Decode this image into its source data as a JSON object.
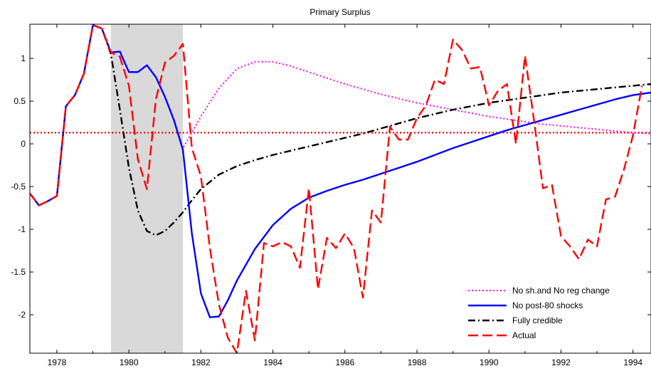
{
  "chart_data": {
    "type": "line",
    "title": "Primary Surplus",
    "xlabel": "",
    "ylabel": "",
    "xlim": [
      1977.25,
      1994.5
    ],
    "ylim": [
      -2.45,
      1.4
    ],
    "x_ticks": [
      1978,
      1980,
      1982,
      1984,
      1986,
      1988,
      1990,
      1992,
      1994
    ],
    "x_tick_labels": [
      "1978",
      "1980",
      "1982",
      "1984",
      "1986",
      "1988",
      "1990",
      "1992",
      "1994"
    ],
    "y_ticks": [
      1,
      0.5,
      0,
      -0.5,
      -1,
      -1.5,
      -2
    ],
    "y_tick_labels": [
      "1",
      "0.5",
      "0",
      "-0.5",
      "-1",
      "-1.5",
      "-2"
    ],
    "grid": false,
    "legend_position": "bottom-right",
    "shaded_region": {
      "x_start": 1979.5,
      "x_end": 1981.5,
      "color": "#d9d9d9"
    },
    "reference_line": {
      "y": 0.13,
      "color": "#ff0000",
      "style": "dotted"
    },
    "series": [
      {
        "name": "No sh.and No reg change",
        "color": "#ff00ff",
        "style": "dotted",
        "points": [
          [
            1977.25,
            -0.58
          ],
          [
            1977.5,
            -0.72
          ],
          [
            1977.75,
            -0.67
          ],
          [
            1978.0,
            -0.61
          ],
          [
            1978.25,
            0.44
          ],
          [
            1978.5,
            0.57
          ],
          [
            1978.75,
            0.82
          ],
          [
            1979.0,
            1.39
          ],
          [
            1979.25,
            1.35
          ],
          [
            1979.5,
            1.07
          ],
          [
            1979.75,
            1.08
          ],
          [
            1980.0,
            0.84
          ],
          [
            1980.25,
            0.84
          ],
          [
            1980.5,
            0.92
          ],
          [
            1980.75,
            0.78
          ],
          [
            1981.0,
            0.55
          ],
          [
            1981.25,
            0.28
          ],
          [
            1981.5,
            -0.05
          ],
          [
            1982.0,
            0.32
          ],
          [
            1982.5,
            0.65
          ],
          [
            1983.0,
            0.88
          ],
          [
            1983.5,
            0.96
          ],
          [
            1984.0,
            0.96
          ],
          [
            1984.5,
            0.91
          ],
          [
            1985.0,
            0.84
          ],
          [
            1985.5,
            0.77
          ],
          [
            1986.0,
            0.7
          ],
          [
            1986.5,
            0.64
          ],
          [
            1987.0,
            0.58
          ],
          [
            1987.5,
            0.53
          ],
          [
            1988.0,
            0.48
          ],
          [
            1988.5,
            0.44
          ],
          [
            1989.0,
            0.4
          ],
          [
            1989.5,
            0.36
          ],
          [
            1990.0,
            0.32
          ],
          [
            1990.5,
            0.29
          ],
          [
            1991.0,
            0.26
          ],
          [
            1991.5,
            0.23
          ],
          [
            1992.0,
            0.21
          ],
          [
            1992.5,
            0.19
          ],
          [
            1993.0,
            0.17
          ],
          [
            1993.5,
            0.15
          ],
          [
            1994.0,
            0.13
          ],
          [
            1994.5,
            0.12
          ]
        ]
      },
      {
        "name": "No post-80 shocks",
        "color": "#0000ff",
        "style": "solid",
        "points": [
          [
            1977.25,
            -0.58
          ],
          [
            1977.5,
            -0.72
          ],
          [
            1977.75,
            -0.67
          ],
          [
            1978.0,
            -0.61
          ],
          [
            1978.25,
            0.44
          ],
          [
            1978.5,
            0.57
          ],
          [
            1978.75,
            0.82
          ],
          [
            1979.0,
            1.39
          ],
          [
            1979.25,
            1.35
          ],
          [
            1979.5,
            1.07
          ],
          [
            1979.75,
            1.08
          ],
          [
            1980.0,
            0.84
          ],
          [
            1980.25,
            0.84
          ],
          [
            1980.5,
            0.92
          ],
          [
            1980.75,
            0.78
          ],
          [
            1981.0,
            0.55
          ],
          [
            1981.25,
            0.28
          ],
          [
            1981.5,
            -0.07
          ],
          [
            1981.75,
            -1.05
          ],
          [
            1982.0,
            -1.75
          ],
          [
            1982.25,
            -2.03
          ],
          [
            1982.5,
            -2.02
          ],
          [
            1982.75,
            -1.83
          ],
          [
            1983.0,
            -1.6
          ],
          [
            1983.5,
            -1.23
          ],
          [
            1984.0,
            -0.95
          ],
          [
            1984.5,
            -0.76
          ],
          [
            1985.0,
            -0.63
          ],
          [
            1985.5,
            -0.55
          ],
          [
            1986.0,
            -0.48
          ],
          [
            1986.5,
            -0.42
          ],
          [
            1987.0,
            -0.35
          ],
          [
            1987.5,
            -0.28
          ],
          [
            1988.0,
            -0.21
          ],
          [
            1988.5,
            -0.13
          ],
          [
            1989.0,
            -0.05
          ],
          [
            1989.5,
            0.02
          ],
          [
            1990.0,
            0.09
          ],
          [
            1990.5,
            0.16
          ],
          [
            1991.0,
            0.22
          ],
          [
            1991.5,
            0.28
          ],
          [
            1992.0,
            0.34
          ],
          [
            1992.5,
            0.4
          ],
          [
            1993.0,
            0.46
          ],
          [
            1993.5,
            0.52
          ],
          [
            1994.0,
            0.57
          ],
          [
            1994.5,
            0.6
          ]
        ]
      },
      {
        "name": "Fully credible",
        "color": "#000000",
        "style": "dashdot",
        "points": [
          [
            1977.25,
            -0.58
          ],
          [
            1977.5,
            -0.72
          ],
          [
            1977.75,
            -0.67
          ],
          [
            1978.0,
            -0.61
          ],
          [
            1978.25,
            0.44
          ],
          [
            1978.5,
            0.57
          ],
          [
            1978.75,
            0.82
          ],
          [
            1979.0,
            1.39
          ],
          [
            1979.25,
            1.35
          ],
          [
            1979.5,
            1.05
          ],
          [
            1979.75,
            0.4
          ],
          [
            1980.0,
            -0.28
          ],
          [
            1980.25,
            -0.78
          ],
          [
            1980.5,
            -1.02
          ],
          [
            1980.75,
            -1.07
          ],
          [
            1981.0,
            -1.02
          ],
          [
            1981.25,
            -0.92
          ],
          [
            1981.5,
            -0.8
          ],
          [
            1981.75,
            -0.66
          ],
          [
            1982.0,
            -0.53
          ],
          [
            1982.5,
            -0.36
          ],
          [
            1983.0,
            -0.26
          ],
          [
            1983.5,
            -0.19
          ],
          [
            1984.0,
            -0.13
          ],
          [
            1984.5,
            -0.08
          ],
          [
            1985.0,
            -0.03
          ],
          [
            1985.5,
            0.02
          ],
          [
            1986.0,
            0.07
          ],
          [
            1986.5,
            0.12
          ],
          [
            1987.0,
            0.18
          ],
          [
            1987.5,
            0.24
          ],
          [
            1988.0,
            0.3
          ],
          [
            1988.5,
            0.35
          ],
          [
            1989.0,
            0.4
          ],
          [
            1989.5,
            0.44
          ],
          [
            1990.0,
            0.48
          ],
          [
            1990.5,
            0.51
          ],
          [
            1991.0,
            0.54
          ],
          [
            1991.5,
            0.57
          ],
          [
            1992.0,
            0.6
          ],
          [
            1992.5,
            0.62
          ],
          [
            1993.0,
            0.64
          ],
          [
            1993.5,
            0.66
          ],
          [
            1994.0,
            0.68
          ],
          [
            1994.5,
            0.7
          ]
        ]
      },
      {
        "name": "Actual",
        "color": "#ff0000",
        "style": "dashed",
        "points": [
          [
            1977.25,
            -0.58
          ],
          [
            1977.5,
            -0.72
          ],
          [
            1977.75,
            -0.67
          ],
          [
            1978.0,
            -0.61
          ],
          [
            1978.25,
            0.44
          ],
          [
            1978.5,
            0.57
          ],
          [
            1978.75,
            0.82
          ],
          [
            1979.0,
            1.39
          ],
          [
            1979.25,
            1.35
          ],
          [
            1979.5,
            1.07
          ],
          [
            1979.75,
            1.02
          ],
          [
            1980.0,
            0.68
          ],
          [
            1980.25,
            -0.18
          ],
          [
            1980.5,
            -0.53
          ],
          [
            1980.75,
            0.52
          ],
          [
            1981.0,
            0.95
          ],
          [
            1981.25,
            1.03
          ],
          [
            1981.5,
            1.17
          ],
          [
            1981.75,
            -0.05
          ],
          [
            1982.0,
            -0.38
          ],
          [
            1982.25,
            -1.22
          ],
          [
            1982.5,
            -1.88
          ],
          [
            1982.75,
            -2.27
          ],
          [
            1983.0,
            -2.45
          ],
          [
            1983.25,
            -1.72
          ],
          [
            1983.5,
            -2.3
          ],
          [
            1983.75,
            -1.16
          ],
          [
            1984.0,
            -1.2
          ],
          [
            1984.25,
            -1.15
          ],
          [
            1984.5,
            -1.2
          ],
          [
            1984.75,
            -1.45
          ],
          [
            1985.0,
            -0.52
          ],
          [
            1985.25,
            -1.7
          ],
          [
            1985.5,
            -1.1
          ],
          [
            1985.75,
            -1.22
          ],
          [
            1986.0,
            -1.05
          ],
          [
            1986.25,
            -1.22
          ],
          [
            1986.5,
            -1.8
          ],
          [
            1986.75,
            -0.78
          ],
          [
            1987.0,
            -0.92
          ],
          [
            1987.25,
            0.2
          ],
          [
            1987.5,
            0.05
          ],
          [
            1987.75,
            0.05
          ],
          [
            1988.0,
            0.3
          ],
          [
            1988.25,
            0.45
          ],
          [
            1988.5,
            0.75
          ],
          [
            1988.75,
            0.7
          ],
          [
            1989.0,
            1.22
          ],
          [
            1989.25,
            1.1
          ],
          [
            1989.5,
            0.88
          ],
          [
            1989.75,
            0.9
          ],
          [
            1990.0,
            0.45
          ],
          [
            1990.25,
            0.62
          ],
          [
            1990.5,
            0.7
          ],
          [
            1990.75,
            0.0
          ],
          [
            1991.0,
            1.03
          ],
          [
            1991.25,
            0.28
          ],
          [
            1991.5,
            -0.52
          ],
          [
            1991.75,
            -0.48
          ],
          [
            1992.0,
            -1.08
          ],
          [
            1992.25,
            -1.2
          ],
          [
            1992.5,
            -1.35
          ],
          [
            1992.75,
            -1.12
          ],
          [
            1993.0,
            -1.2
          ],
          [
            1993.25,
            -0.65
          ],
          [
            1993.5,
            -0.62
          ],
          [
            1993.75,
            -0.3
          ],
          [
            1994.0,
            0.1
          ],
          [
            1994.25,
            0.68
          ]
        ]
      }
    ]
  }
}
